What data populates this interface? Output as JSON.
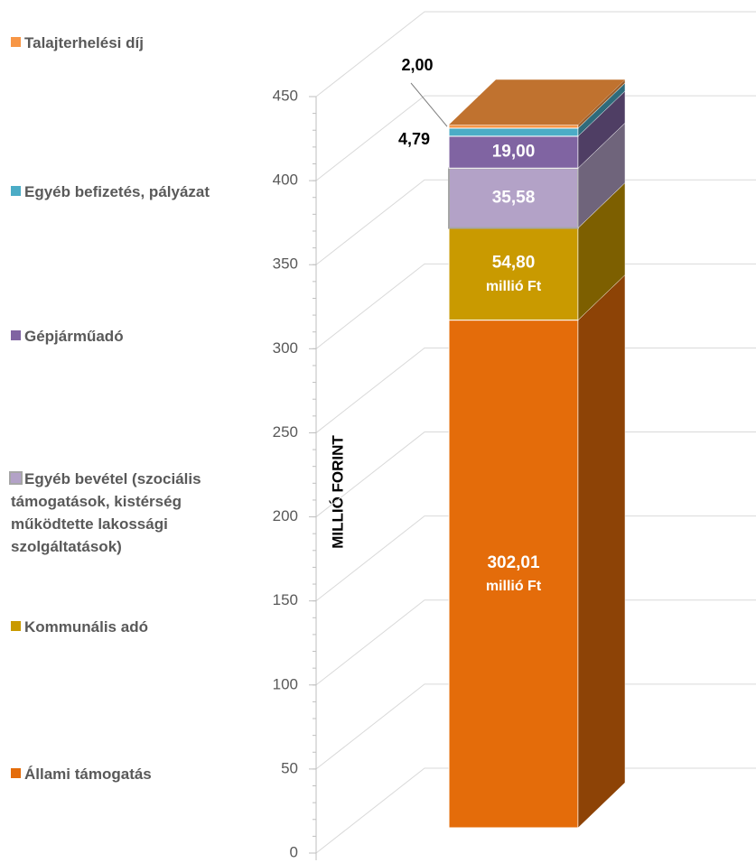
{
  "chart_data": {
    "type": "bar3d_stacked",
    "y_label": "MILLIÓ FORINT",
    "value_unit": "millió Ft",
    "ylim": [
      0,
      450
    ],
    "yticks": [
      0,
      50,
      100,
      150,
      200,
      250,
      300,
      350,
      400,
      450
    ],
    "grid": true,
    "legend": "left",
    "series": [
      {
        "name": "Állami támogatás",
        "color": "#e46c0a",
        "values": [
          302.01
        ],
        "value_labels": [
          "302,01"
        ]
      },
      {
        "name": "Kommunális adó",
        "color": "#c99a00",
        "values": [
          54.8
        ],
        "value_labels": [
          "54,80"
        ]
      },
      {
        "name": "Egyéb bevétel (szociális támogatások, kistérség működtette lakossági szolgáltatások)",
        "color": "#b3a2c7",
        "values": [
          35.58
        ],
        "value_labels": [
          "35,58"
        ]
      },
      {
        "name": "Gépjárműadó",
        "color": "#8064a2",
        "values": [
          19.0
        ],
        "value_labels": [
          "19,00"
        ]
      },
      {
        "name": "Egyéb befizetés, pályázat",
        "color": "#4bacc6",
        "values": [
          4.79
        ],
        "value_labels": [
          "4,79"
        ]
      },
      {
        "name": "Talajterhelési díj",
        "color": "#f79646",
        "values": [
          2.0
        ],
        "value_labels": [
          "2,00"
        ]
      }
    ]
  }
}
